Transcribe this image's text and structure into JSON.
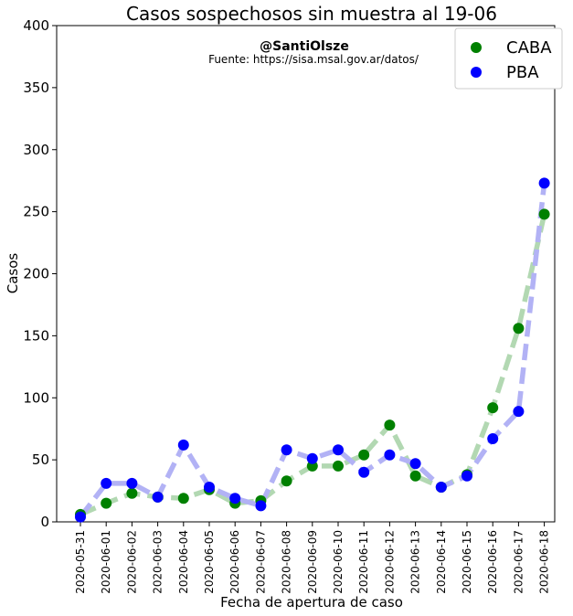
{
  "chart_data": {
    "type": "line",
    "title": "Casos sospechosos sin muestra al 19-06",
    "xlabel": "Fecha de apertura de caso",
    "ylabel": "Casos",
    "annotation_handle": "@SantiOlsze",
    "annotation_source": "Fuente: https://sisa.msal.gov.ar/datos/",
    "ylim": [
      0,
      400
    ],
    "yticks": [
      0,
      50,
      100,
      150,
      200,
      250,
      300,
      350,
      400
    ],
    "legend_position": "top-right",
    "grid": false,
    "categories": [
      "2020-05-31",
      "2020-06-01",
      "2020-06-02",
      "2020-06-03",
      "2020-06-04",
      "2020-06-05",
      "2020-06-06",
      "2020-06-07",
      "2020-06-08",
      "2020-06-09",
      "2020-06-10",
      "2020-06-11",
      "2020-06-12",
      "2020-06-13",
      "2020-06-14",
      "2020-06-15",
      "2020-06-16",
      "2020-06-17",
      "2020-06-18"
    ],
    "series": [
      {
        "name": "CABA",
        "color": "#008000",
        "line_color": "#b2d8b2",
        "values": [
          6,
          15,
          23,
          20,
          19,
          26,
          15,
          17,
          33,
          45,
          45,
          54,
          78,
          37,
          28,
          38,
          92,
          156,
          248
        ]
      },
      {
        "name": "PBA",
        "color": "#0000ff",
        "line_color": "#b2b2f5",
        "values": [
          4,
          31,
          31,
          20,
          62,
          28,
          19,
          13,
          58,
          51,
          58,
          40,
          54,
          47,
          28,
          37,
          67,
          89,
          273
        ]
      }
    ]
  }
}
